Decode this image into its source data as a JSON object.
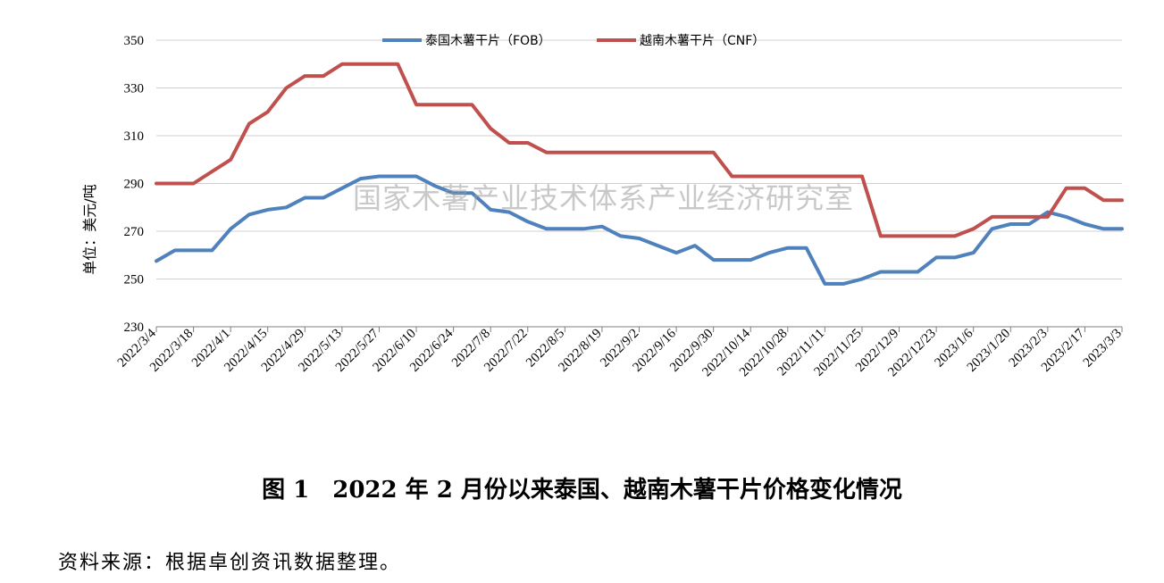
{
  "chart_data": {
    "type": "line",
    "ylabel": "单位：美元/吨",
    "ylim": [
      230,
      350
    ],
    "yticks": [
      230,
      250,
      270,
      290,
      310,
      330,
      350
    ],
    "grid": "horizontal",
    "legend": "top-center",
    "x": [
      "2022/3/4",
      "2022/3/11",
      "2022/3/18",
      "2022/3/25",
      "2022/4/1",
      "2022/4/8",
      "2022/4/15",
      "2022/4/22",
      "2022/4/29",
      "2022/5/6",
      "2022/5/13",
      "2022/5/20",
      "2022/5/27",
      "2022/6/3",
      "2022/6/10",
      "2022/6/17",
      "2022/6/24",
      "2022/7/1",
      "2022/7/8",
      "2022/7/15",
      "2022/7/22",
      "2022/7/29",
      "2022/8/5",
      "2022/8/12",
      "2022/8/19",
      "2022/8/26",
      "2022/9/2",
      "2022/9/9",
      "2022/9/16",
      "2022/9/23",
      "2022/9/30",
      "2022/10/7",
      "2022/10/14",
      "2022/10/21",
      "2022/10/28",
      "2022/11/4",
      "2022/11/11",
      "2022/11/18",
      "2022/11/25",
      "2022/12/2",
      "2022/12/9",
      "2022/12/16",
      "2022/12/23",
      "2022/12/30",
      "2023/1/6",
      "2023/1/13",
      "2023/1/20",
      "2023/1/27",
      "2023/2/3",
      "2023/2/10",
      "2023/2/17",
      "2023/2/24",
      "2023/3/3"
    ],
    "x_tick_labels": [
      "2022/3/4",
      "2022/3/18",
      "2022/4/1",
      "2022/4/15",
      "2022/4/29",
      "2022/5/13",
      "2022/5/27",
      "2022/6/10",
      "2022/6/24",
      "2022/7/8",
      "2022/7/22",
      "2022/8/5",
      "2022/8/19",
      "2022/9/2",
      "2022/9/16",
      "2022/9/30",
      "2022/10/14",
      "2022/10/28",
      "2022/11/11",
      "2022/11/25",
      "2022/12/9",
      "2022/12/23",
      "2023/1/6",
      "2023/1/20",
      "2023/2/3",
      "2023/2/17",
      "2023/3/3"
    ],
    "series": [
      {
        "name": "泰国木薯干片（FOB）",
        "color": "#4f81bd",
        "values": [
          257.5,
          262,
          262,
          262,
          271,
          277,
          279,
          280,
          284,
          284,
          288,
          292,
          293,
          293,
          293,
          289,
          286,
          286,
          279,
          278,
          274,
          271,
          271,
          271,
          272,
          268,
          267,
          264,
          261,
          264,
          258,
          258,
          258,
          261,
          263,
          263,
          248,
          248,
          250,
          253,
          253,
          253,
          259,
          259,
          261,
          271,
          273,
          273,
          278,
          276,
          273,
          271,
          271
        ]
      },
      {
        "name": "越南木薯干片（CNF）",
        "color": "#c0504d",
        "values": [
          290,
          290,
          290,
          295,
          300,
          315,
          320,
          330,
          335,
          335,
          340,
          340,
          340,
          340,
          323,
          323,
          323,
          323,
          313,
          307,
          307,
          303,
          303,
          303,
          303,
          303,
          303,
          303,
          303,
          303,
          303,
          293,
          293,
          293,
          293,
          293,
          293,
          293,
          293,
          268,
          268,
          268,
          268,
          268,
          271,
          276,
          276,
          276,
          276,
          288,
          288,
          283,
          283
        ]
      }
    ]
  },
  "watermark": "国家木薯产业技术体系产业经济研究室",
  "caption": "图 1　2022 年 2 月份以来泰国、越南木薯干片价格变化情况",
  "source": "资料来源：根据卓创资讯数据整理。"
}
